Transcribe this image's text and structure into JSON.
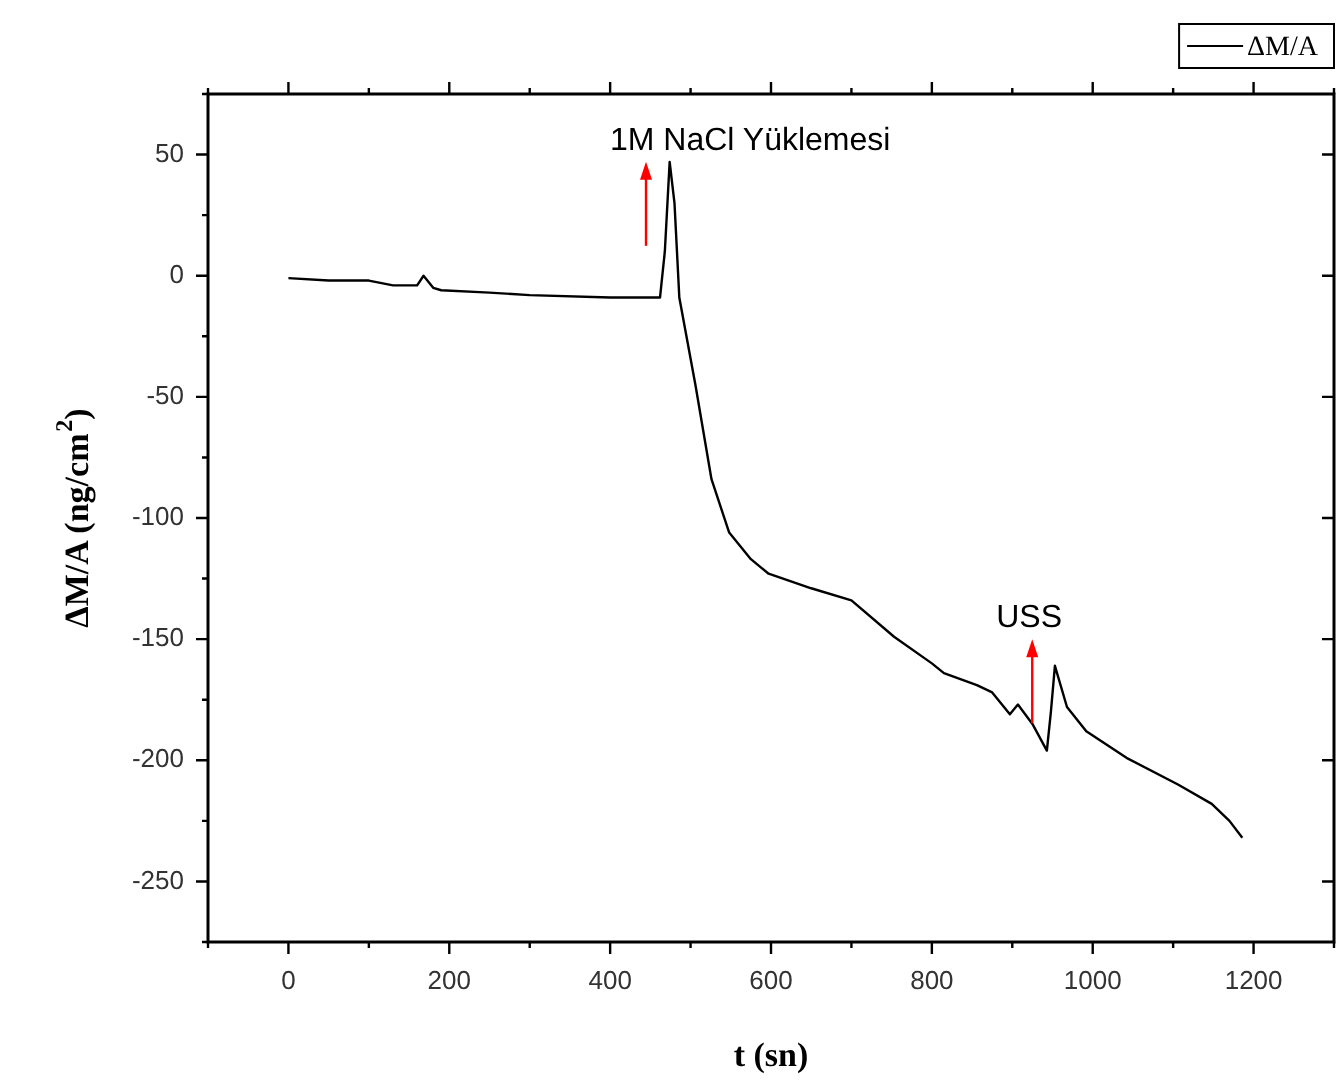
{
  "chart_data": {
    "type": "line",
    "xlabel": "t (sn)",
    "ylabel": "ΔM/A (ng/cm$^{2}$)",
    "legend": "top right",
    "grid": false,
    "marker": "none",
    "line_style": "solid",
    "xlim": [
      -100,
      1300
    ],
    "xticks": [
      0,
      200,
      400,
      600,
      800,
      1000,
      1200
    ],
    "ylim": [
      -275,
      75
    ],
    "yticks": [
      50,
      0,
      -50,
      -100,
      -150,
      -200,
      -250
    ],
    "annotations": [
      "1M NaCl Yüklemesi",
      "USS"
    ],
    "series": [
      {
        "name": "ΔM/A",
        "color": "#000000",
        "x": [
          0,
          50,
          100,
          130,
          160,
          168,
          180,
          190,
          250,
          300,
          400,
          462,
          468,
          474,
          480,
          486,
          506,
          526,
          548,
          575,
          597,
          650,
          700,
          753,
          800,
          815,
          856,
          875,
          897,
          907,
          925,
          943,
          948,
          953,
          968,
          992,
          1042,
          1106,
          1148,
          1170,
          1186
        ],
        "values": [
          -1,
          -2,
          -2,
          -4,
          -4,
          0,
          -5,
          -6,
          -7,
          -8,
          -9,
          -9,
          10,
          47,
          30,
          -9,
          -45,
          -84,
          -106,
          -117,
          -123,
          -129,
          -134,
          -149,
          -160,
          -164,
          -169,
          -172,
          -181,
          -177,
          -185,
          -196,
          -180,
          -161,
          -178,
          -188,
          -199,
          -210,
          -218,
          -225,
          -232
        ]
      }
    ]
  }
}
